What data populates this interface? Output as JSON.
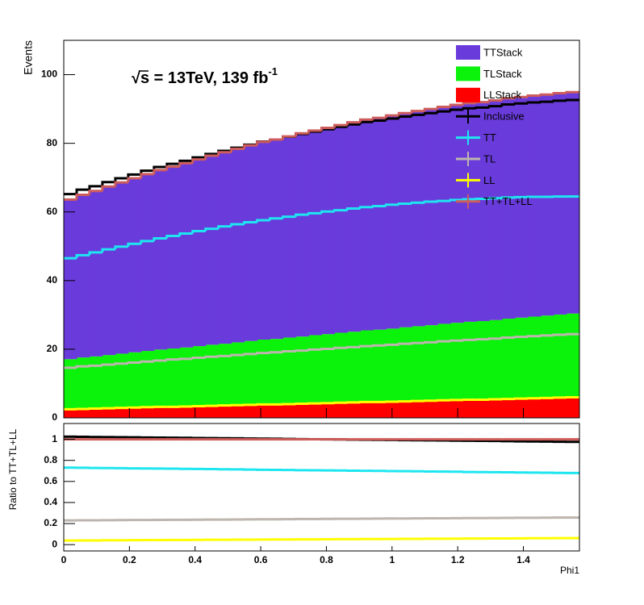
{
  "chart_data": [
    {
      "type": "histogram",
      "annotation": "√s = 13TeV, 139 fb",
      "annotation_sup": "-1",
      "ylabel": "Events",
      "bins": [
        0,
        0.0393,
        0.0785,
        0.1178,
        0.1571,
        0.1963,
        0.2356,
        0.2749,
        0.3142,
        0.3534,
        0.3927,
        0.432,
        0.4712,
        0.5105,
        0.5498,
        0.589,
        0.6283,
        0.6676,
        0.7069,
        0.7461,
        0.7854,
        0.8247,
        0.8639,
        0.9032,
        0.9425,
        0.9817,
        1.021,
        1.0603,
        1.0996,
        1.1388,
        1.1781,
        1.2174,
        1.2566,
        1.2959,
        1.3352,
        1.3744,
        1.4137,
        1.453,
        1.4923,
        1.5315,
        1.5708
      ],
      "xlim": [
        0,
        1.5708
      ],
      "xticks": [
        0,
        0.2,
        0.4,
        0.6,
        0.8,
        1,
        1.2,
        1.4
      ],
      "x_tick_labels": false,
      "ylim": [
        0,
        110
      ],
      "yticks": [
        0,
        20,
        40,
        60,
        80,
        100
      ],
      "legend": "top-right",
      "series": [
        {
          "name": "TTStack",
          "style": "stack",
          "color": "#6a3bdb",
          "values": [
            46.5,
            47.4,
            48.2,
            49.1,
            49.9,
            50.7,
            51.5,
            52.3,
            53.0,
            53.7,
            54.4,
            55.1,
            55.8,
            56.4,
            57.0,
            57.6,
            58.1,
            58.6,
            59.2,
            59.6,
            60.1,
            60.5,
            61.0,
            61.4,
            61.7,
            62.1,
            62.4,
            62.7,
            63.0,
            63.2,
            63.5,
            63.7,
            63.8,
            64.0,
            64.2,
            64.3,
            64.4,
            64.4,
            64.5,
            64.5
          ]
        },
        {
          "name": "TLStack",
          "style": "stack",
          "color": "#0bf20b",
          "values": [
            14.6,
            15.0,
            15.2,
            15.5,
            15.8,
            16.1,
            16.4,
            16.7,
            17.0,
            17.2,
            17.5,
            17.8,
            18.0,
            18.3,
            18.6,
            18.9,
            19.1,
            19.4,
            19.6,
            19.9,
            20.1,
            20.4,
            20.6,
            20.9,
            21.1,
            21.3,
            21.6,
            21.8,
            22.0,
            22.3,
            22.5,
            22.7,
            22.9,
            23.1,
            23.4,
            23.6,
            23.8,
            24.0,
            24.2,
            24.4
          ]
        },
        {
          "name": "LLStack",
          "style": "stack",
          "color": "#ff0000",
          "values": [
            2.5,
            2.6,
            2.7,
            2.8,
            2.9,
            3.0,
            3.1,
            3.2,
            3.2,
            3.3,
            3.4,
            3.5,
            3.6,
            3.7,
            3.8,
            3.9,
            3.9,
            4.0,
            4.1,
            4.2,
            4.3,
            4.4,
            4.5,
            4.6,
            4.6,
            4.7,
            4.8,
            4.9,
            5.0,
            5.1,
            5.2,
            5.3,
            5.3,
            5.4,
            5.5,
            5.6,
            5.7,
            5.8,
            5.9,
            6.0
          ]
        },
        {
          "name": "Inclusive",
          "style": "line",
          "color": "#000000",
          "values": [
            65.2,
            66.5,
            67.5,
            68.7,
            69.8,
            70.9,
            72.0,
            73.1,
            74.0,
            74.9,
            75.9,
            76.9,
            77.8,
            78.7,
            79.6,
            80.5,
            81.1,
            81.9,
            82.7,
            83.4,
            84.1,
            84.8,
            85.5,
            86.2,
            86.6,
            87.2,
            87.8,
            88.3,
            88.8,
            89.3,
            89.8,
            90.2,
            90.4,
            90.8,
            91.3,
            91.6,
            91.9,
            92.1,
            92.4,
            92.6
          ]
        },
        {
          "name": "TT",
          "style": "line",
          "color": "#1ee6f0",
          "values": [
            46.5,
            47.4,
            48.2,
            49.1,
            49.9,
            50.7,
            51.5,
            52.3,
            53.0,
            53.7,
            54.4,
            55.1,
            55.8,
            56.4,
            57.0,
            57.6,
            58.1,
            58.6,
            59.2,
            59.6,
            60.1,
            60.5,
            61.0,
            61.4,
            61.7,
            62.1,
            62.4,
            62.7,
            63.0,
            63.2,
            63.5,
            63.7,
            63.8,
            64.0,
            64.2,
            64.3,
            64.4,
            64.4,
            64.5,
            64.5
          ]
        },
        {
          "name": "TL",
          "style": "line",
          "color": "#bdb5ae",
          "values": [
            14.6,
            15.0,
            15.2,
            15.5,
            15.8,
            16.1,
            16.4,
            16.7,
            17.0,
            17.2,
            17.5,
            17.8,
            18.0,
            18.3,
            18.6,
            18.9,
            19.1,
            19.4,
            19.6,
            19.9,
            20.1,
            20.4,
            20.6,
            20.9,
            21.1,
            21.3,
            21.6,
            21.8,
            22.0,
            22.3,
            22.5,
            22.7,
            22.9,
            23.1,
            23.4,
            23.6,
            23.8,
            24.0,
            24.2,
            24.4
          ]
        },
        {
          "name": "LL",
          "style": "line",
          "color": "#ffff00",
          "values": [
            2.5,
            2.6,
            2.7,
            2.8,
            2.9,
            3.0,
            3.1,
            3.2,
            3.2,
            3.3,
            3.4,
            3.5,
            3.6,
            3.7,
            3.8,
            3.9,
            3.9,
            4.0,
            4.1,
            4.2,
            4.3,
            4.4,
            4.5,
            4.6,
            4.6,
            4.7,
            4.8,
            4.9,
            5.0,
            5.1,
            5.2,
            5.3,
            5.3,
            5.4,
            5.5,
            5.6,
            5.7,
            5.8,
            5.9,
            6.0
          ]
        },
        {
          "name": "TT+TL+LL",
          "style": "line",
          "color": "#cd5c5c",
          "values": [
            63.6,
            65.0,
            66.1,
            67.4,
            68.6,
            69.8,
            71.0,
            72.2,
            73.2,
            74.2,
            75.3,
            76.4,
            77.4,
            78.4,
            79.4,
            80.4,
            81.1,
            82.0,
            82.9,
            83.7,
            84.5,
            85.3,
            86.1,
            86.9,
            87.4,
            88.1,
            88.8,
            89.4,
            90.0,
            90.6,
            91.2,
            91.7,
            92.0,
            92.5,
            93.1,
            93.5,
            93.9,
            94.2,
            94.6,
            94.9
          ]
        }
      ]
    },
    {
      "type": "histogram",
      "ylabel": "Ratio to TT+TL+LL",
      "xlabel": "Phi1",
      "bins": [
        0,
        0.0393,
        0.0785,
        0.1178,
        0.1571,
        0.1963,
        0.2356,
        0.2749,
        0.3142,
        0.3534,
        0.3927,
        0.432,
        0.4712,
        0.5105,
        0.5498,
        0.589,
        0.6283,
        0.6676,
        0.7069,
        0.7461,
        0.7854,
        0.8247,
        0.8639,
        0.9032,
        0.9425,
        0.9817,
        1.021,
        1.0603,
        1.0996,
        1.1388,
        1.1781,
        1.2174,
        1.2566,
        1.2959,
        1.3352,
        1.3744,
        1.4137,
        1.453,
        1.4923,
        1.5315,
        1.5708
      ],
      "xlim": [
        0,
        1.5708
      ],
      "xticks": [
        0,
        0.2,
        0.4,
        0.6,
        0.8,
        1,
        1.2,
        1.4
      ],
      "x_tick_labels": true,
      "ylim": [
        -0.06,
        1.15
      ],
      "yticks": [
        0,
        0.2,
        0.4,
        0.6,
        0.8,
        1
      ],
      "series": [
        {
          "style": "line",
          "color": "#000000",
          "values": [
            1.025,
            1.024,
            1.022,
            1.021,
            1.02,
            1.019,
            1.017,
            1.016,
            1.015,
            1.014,
            1.012,
            1.011,
            1.01,
            1.009,
            1.007,
            1.006,
            1.005,
            1.004,
            1.002,
            1.001,
            1.0,
            0.999,
            0.997,
            0.996,
            0.995,
            0.994,
            0.992,
            0.991,
            0.99,
            0.989,
            0.987,
            0.986,
            0.985,
            0.984,
            0.982,
            0.981,
            0.98,
            0.979,
            0.977,
            0.976
          ]
        },
        {
          "style": "line",
          "color": "#1ee6f0",
          "values": [
            0.731,
            0.73,
            0.728,
            0.727,
            0.726,
            0.724,
            0.723,
            0.722,
            0.721,
            0.719,
            0.718,
            0.717,
            0.715,
            0.714,
            0.713,
            0.711,
            0.71,
            0.709,
            0.707,
            0.706,
            0.705,
            0.704,
            0.702,
            0.701,
            0.7,
            0.698,
            0.697,
            0.696,
            0.694,
            0.693,
            0.692,
            0.69,
            0.689,
            0.688,
            0.687,
            0.685,
            0.684,
            0.683,
            0.681,
            0.68
          ]
        },
        {
          "style": "line",
          "color": "#bdb5ae",
          "values": [
            0.23,
            0.231,
            0.231,
            0.232,
            0.233,
            0.234,
            0.234,
            0.235,
            0.236,
            0.236,
            0.237,
            0.238,
            0.238,
            0.239,
            0.24,
            0.241,
            0.241,
            0.242,
            0.243,
            0.243,
            0.244,
            0.245,
            0.245,
            0.246,
            0.247,
            0.248,
            0.248,
            0.249,
            0.25,
            0.25,
            0.251,
            0.252,
            0.252,
            0.253,
            0.254,
            0.255,
            0.255,
            0.256,
            0.257,
            0.257
          ]
        },
        {
          "style": "line",
          "color": "#ffff00",
          "values": [
            0.039,
            0.04,
            0.04,
            0.041,
            0.041,
            0.042,
            0.043,
            0.043,
            0.044,
            0.044,
            0.045,
            0.046,
            0.046,
            0.047,
            0.047,
            0.048,
            0.049,
            0.049,
            0.05,
            0.05,
            0.051,
            0.052,
            0.052,
            0.053,
            0.053,
            0.054,
            0.055,
            0.055,
            0.056,
            0.056,
            0.057,
            0.058,
            0.058,
            0.059,
            0.059,
            0.06,
            0.061,
            0.061,
            0.062,
            0.062
          ]
        },
        {
          "style": "line",
          "color": "#cd5c5c",
          "values": [
            1,
            1,
            1,
            1,
            1,
            1,
            1,
            1,
            1,
            1,
            1,
            1,
            1,
            1,
            1,
            1,
            1,
            1,
            1,
            1,
            1,
            1,
            1,
            1,
            1,
            1,
            1,
            1,
            1,
            1,
            1,
            1,
            1,
            1,
            1,
            1,
            1,
            1,
            1,
            1
          ]
        }
      ]
    }
  ]
}
